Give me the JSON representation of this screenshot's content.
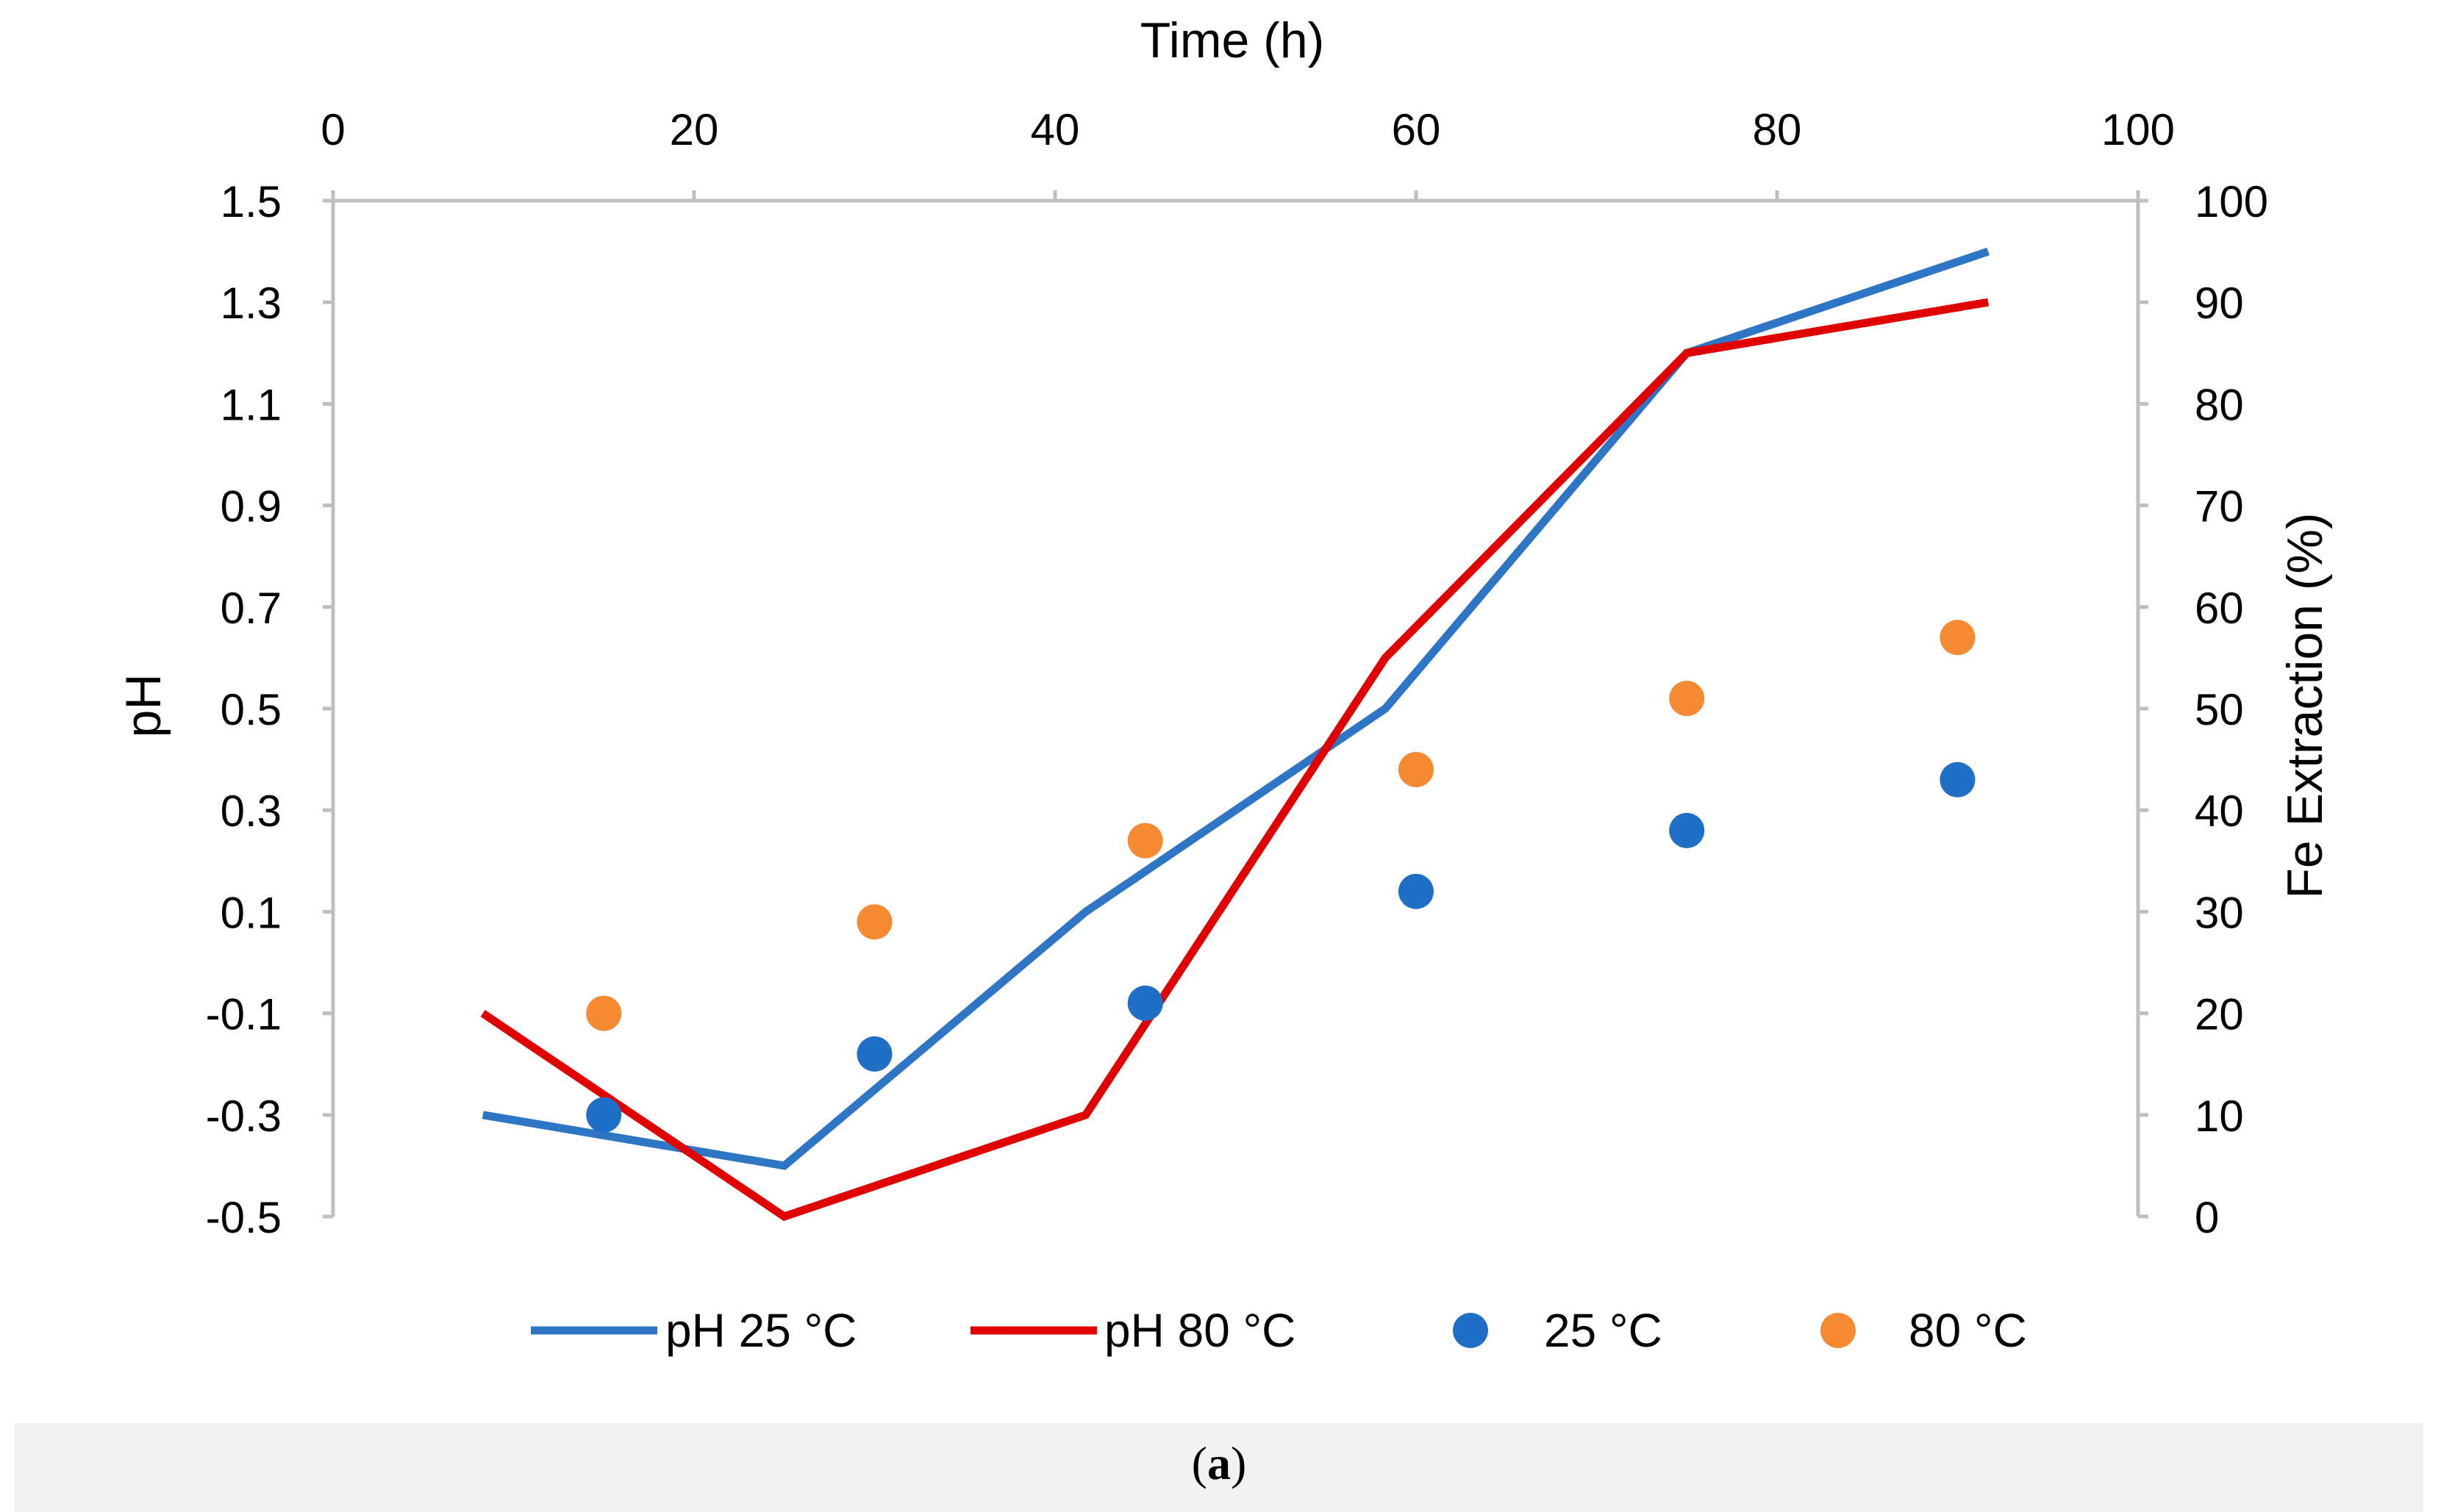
{
  "chart_data": {
    "type": "line",
    "xlabel": "Time (h)",
    "ylabel_left": "pH",
    "ylabel_right": "Fe Extraction (%)",
    "x_axis": {
      "position": "top",
      "range": [
        0,
        100
      ],
      "ticks": [
        "0",
        "20",
        "40",
        "60",
        "80",
        "100"
      ]
    },
    "y_left": {
      "range": [
        -0.5,
        1.5
      ],
      "ticks": [
        "1.5",
        "1.3",
        "1.1",
        "0.9",
        "0.7",
        "0.5",
        "0.3",
        "0.1",
        "-0.1",
        "-0.3",
        "-0.5"
      ]
    },
    "y_right": {
      "range": [
        0,
        100
      ],
      "ticks": [
        "100",
        "90",
        "80",
        "70",
        "60",
        "50",
        "40",
        "30",
        "20",
        "10",
        "0"
      ]
    },
    "grid": false,
    "legend_position": "bottom",
    "series": [
      {
        "name": "pH 25 °C",
        "kind": "line",
        "axis": "left",
        "color": "#2e75c6",
        "x": [
          8.3,
          25,
          41.7,
          58.3,
          75,
          91.7
        ],
        "y": [
          -0.3,
          -0.4,
          0.1,
          0.5,
          1.2,
          1.4
        ]
      },
      {
        "name": "pH 80 °C",
        "kind": "line",
        "axis": "left",
        "color": "#e00000",
        "x": [
          8.3,
          25,
          41.7,
          58.3,
          75,
          91.7
        ],
        "y": [
          -0.1,
          -0.5,
          -0.3,
          0.6,
          1.2,
          1.3
        ]
      },
      {
        "name": "25 °C",
        "kind": "scatter",
        "axis": "right",
        "color": "#1f6fc6",
        "x": [
          15,
          30,
          45,
          60,
          75,
          90
        ],
        "y": [
          10,
          16,
          21,
          32,
          38,
          43
        ]
      },
      {
        "name": "80 °C",
        "kind": "scatter",
        "axis": "right",
        "color": "#f58a32",
        "x": [
          15,
          30,
          45,
          60,
          75,
          90
        ],
        "y": [
          20,
          29,
          37,
          44,
          51,
          57
        ]
      }
    ]
  },
  "caption": {
    "prefix": "(",
    "label": "a",
    "suffix": ")"
  },
  "colors": {
    "axis": "#bfbfbf",
    "text": "#000000",
    "caption_bg": "#f2f2f2"
  }
}
